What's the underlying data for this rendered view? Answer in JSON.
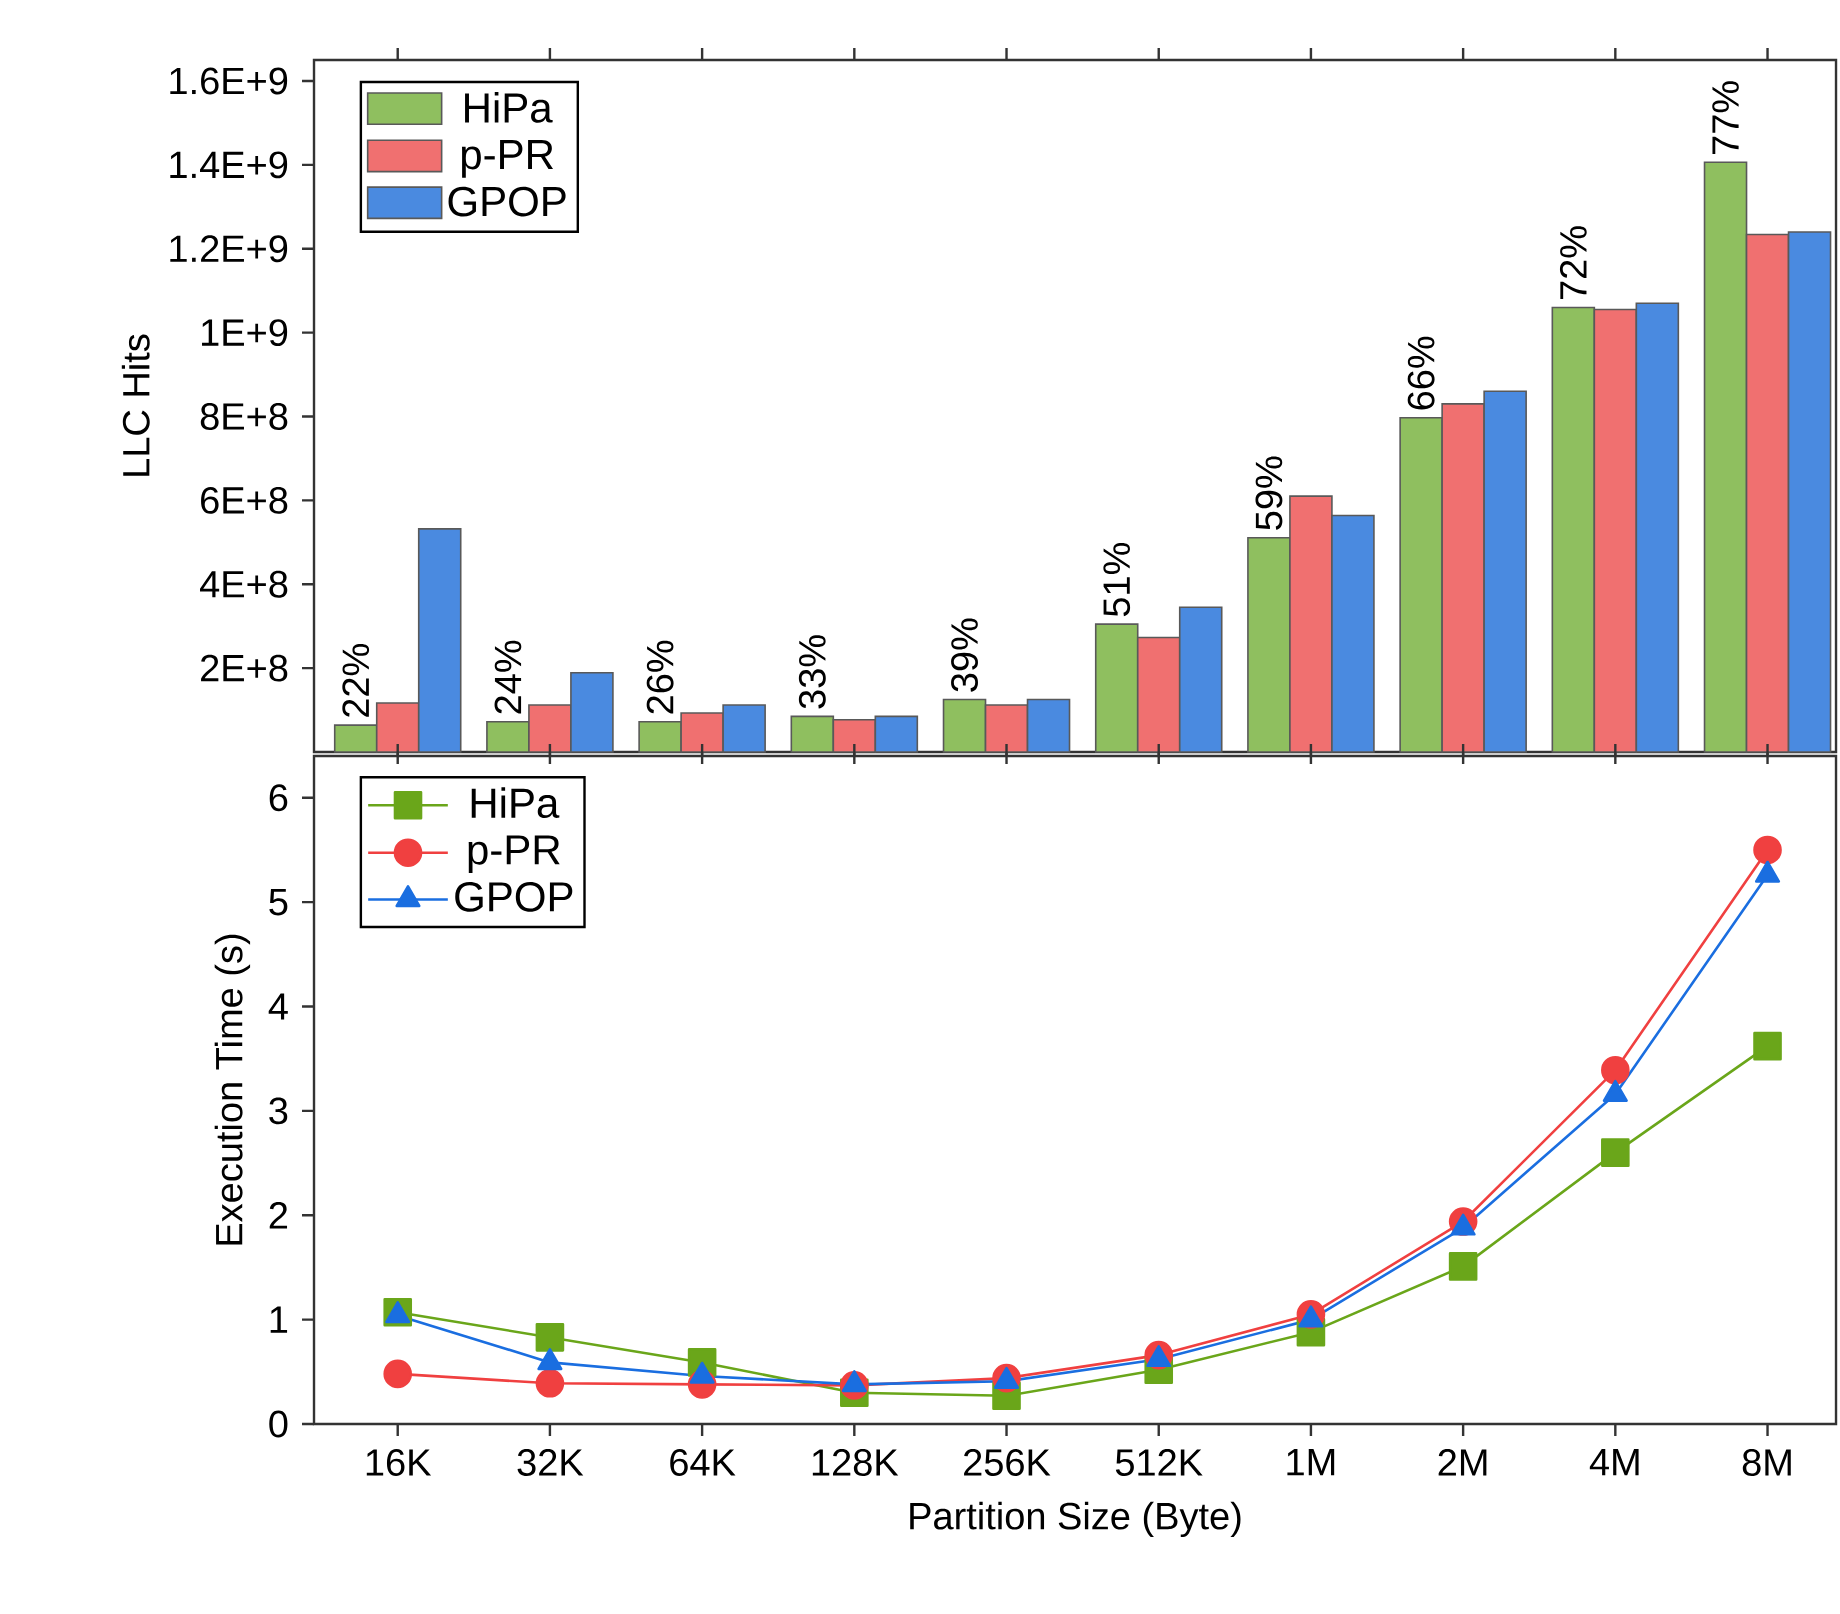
{
  "chart_data": [
    {
      "type": "bar",
      "ylabel": "LLC Hits",
      "categories": [
        null,
        null,
        null,
        null,
        null,
        null,
        null,
        null,
        null,
        null
      ],
      "series": [
        {
          "name": "HiPa",
          "color": "#8fbf5f",
          "values": [
            64000000,
            72000000,
            72000000,
            85000000,
            125000000,
            305000000,
            511000000,
            797000000,
            1060000000,
            1406000000
          ]
        },
        {
          "name": "p-PR",
          "color": "#f07070",
          "values": [
            117000000,
            112000000,
            93000000,
            77000000,
            112000000,
            273000000,
            610000000,
            830000000,
            1055000000,
            1234000000
          ]
        },
        {
          "name": "GPOP",
          "color": "#4a8ae0",
          "values": [
            532000000,
            189000000,
            112000000,
            85000000,
            125000000,
            345000000,
            564000000,
            860000000,
            1070000000,
            1240000000
          ]
        }
      ],
      "ylim": [
        0,
        1650000000
      ],
      "yticks": [
        {
          "value": 200000000,
          "label": "2E+8"
        },
        {
          "value": 400000000,
          "label": "4E+8"
        },
        {
          "value": 600000000,
          "label": "6E+8"
        },
        {
          "value": 800000000,
          "label": "8E+8"
        },
        {
          "value": 1000000000,
          "label": "1E+9"
        },
        {
          "value": 1200000000,
          "label": "1.2E+9"
        },
        {
          "value": 1400000000,
          "label": "1.4E+9"
        },
        {
          "value": 1600000000,
          "label": "1.6E+9"
        }
      ],
      "annotations": [
        "22%",
        "24%",
        "26%",
        "33%",
        "39%",
        "51%",
        "59%",
        "66%",
        "72%",
        "77%"
      ],
      "legend": "top left",
      "tick_labels": "y"
    },
    {
      "type": "line",
      "xlabel": "Partition Size (Byte)",
      "ylabel": "Execution Time (s)",
      "categories": [
        "16K",
        "32K",
        "64K",
        "128K",
        "256K",
        "512K",
        "1M",
        "2M",
        "4M",
        "8M"
      ],
      "series": [
        {
          "name": "HiPa",
          "color": "#6aa61a",
          "marker": "square",
          "values": [
            1.07,
            0.83,
            0.59,
            0.3,
            0.27,
            0.52,
            0.88,
            1.51,
            2.6,
            3.62
          ]
        },
        {
          "name": "p-PR",
          "color": "#f04040",
          "marker": "circle",
          "values": [
            0.48,
            0.39,
            0.38,
            0.37,
            0.44,
            0.66,
            1.05,
            1.94,
            3.39,
            5.5
          ]
        },
        {
          "name": "GPOP",
          "color": "#1a6ee0",
          "marker": "triangle",
          "values": [
            1.04,
            0.59,
            0.46,
            0.38,
            0.41,
            0.62,
            1.0,
            1.88,
            3.16,
            5.26
          ]
        }
      ],
      "ylim": [
        0,
        6.4
      ],
      "yticks": [
        0,
        1,
        2,
        3,
        4,
        5,
        6
      ],
      "legend": "top left"
    }
  ]
}
